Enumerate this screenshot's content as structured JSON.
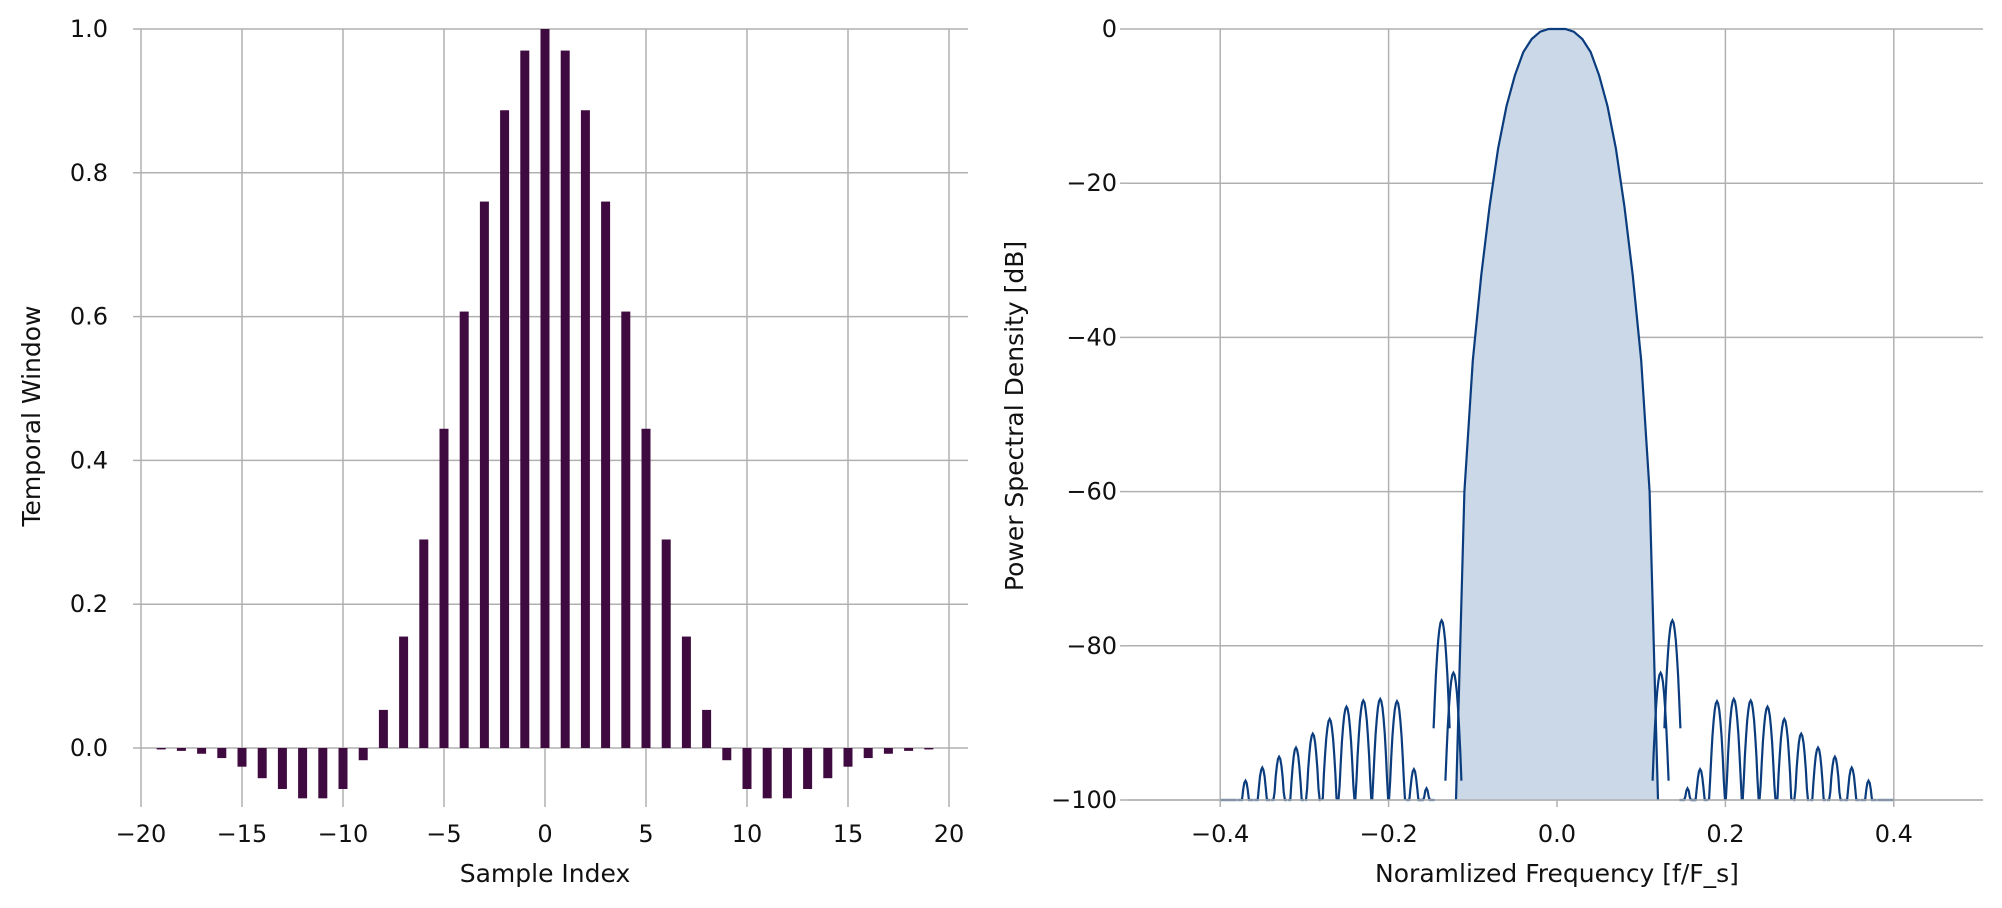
{
  "chart_data": [
    {
      "type": "bar",
      "xlabel": "Sample Index",
      "ylabel": "Temporal Window",
      "xlim": [
        -21,
        20.5
      ],
      "ylim": [
        -0.08,
        1.0
      ],
      "grid": true,
      "bar_color": "#3f0a3f",
      "xticks": [
        -20,
        -15,
        -10,
        -5,
        0,
        5,
        10,
        15,
        20
      ],
      "xtick_labels": [
        "−20",
        "−15",
        "−10",
        "−5",
        "0",
        "5",
        "10",
        "15",
        "20"
      ],
      "yticks": [
        0.0,
        0.2,
        0.4,
        0.6,
        0.8,
        1.0
      ],
      "ytick_labels": [
        "0.0",
        "0.2",
        "0.4",
        "0.6",
        "0.8",
        "1.0"
      ],
      "x": [
        -19,
        -18,
        -17,
        -16,
        -15,
        -14,
        -13,
        -12,
        -11,
        -10,
        -9,
        -8,
        -7,
        -6,
        -5,
        -4,
        -3,
        -2,
        -1,
        0,
        1,
        2,
        3,
        4,
        5,
        6,
        7,
        8,
        9,
        10,
        11,
        12,
        13,
        14,
        15,
        16,
        17,
        18,
        19
      ],
      "values": [
        -0.002,
        -0.004,
        -0.008,
        -0.014,
        -0.026,
        -0.042,
        -0.057,
        -0.07,
        -0.07,
        -0.057,
        -0.017,
        0.053,
        0.155,
        0.29,
        0.444,
        0.607,
        0.76,
        0.887,
        0.97,
        1.0,
        0.97,
        0.887,
        0.76,
        0.607,
        0.444,
        0.29,
        0.155,
        0.053,
        -0.017,
        -0.057,
        -0.07,
        -0.07,
        -0.057,
        -0.042,
        -0.026,
        -0.014,
        -0.008,
        -0.004,
        -0.002
      ]
    },
    {
      "type": "area",
      "xlabel": "Noramlized Frequency [f/F_s]",
      "ylabel": "Power Spectral Density [dB]",
      "xlim": [
        -0.5,
        0.5
      ],
      "ylim": [
        -100,
        0
      ],
      "grid": true,
      "line_color": "#0b3d7e",
      "fill_color": "#cbd8e7",
      "xticks": [
        -0.4,
        -0.2,
        0.0,
        0.2,
        0.4
      ],
      "xtick_labels": [
        "−0.4",
        "−0.2",
        "0.0",
        "0.2",
        "0.4"
      ],
      "yticks": [
        0,
        -20,
        -40,
        -60,
        -80,
        -100
      ],
      "ytick_labels": [
        "0",
        "−20",
        "−40",
        "−60",
        "−80",
        "−100"
      ],
      "mainlobe": {
        "x": [
          -0.12,
          -0.115,
          -0.11,
          -0.1,
          -0.09,
          -0.08,
          -0.07,
          -0.06,
          -0.05,
          -0.04,
          -0.03,
          -0.02,
          -0.01,
          0.0,
          0.01,
          0.02,
          0.03,
          0.04,
          0.05,
          0.06,
          0.07,
          0.08,
          0.09,
          0.1,
          0.11,
          0.115,
          0.12
        ],
        "y": [
          -100,
          -80,
          -60,
          -43,
          -32,
          -23,
          -15.5,
          -10,
          -6,
          -3,
          -1.3,
          -0.35,
          0,
          0,
          0,
          -0.35,
          -1.3,
          -3,
          -6,
          -10,
          -15.5,
          -23,
          -32,
          -43,
          -60,
          -80,
          -100
        ]
      },
      "sidelobes": {
        "centers": [
          -0.39,
          -0.37,
          -0.35,
          -0.33,
          -0.31,
          -0.29,
          -0.27,
          -0.25,
          -0.23,
          -0.21,
          -0.19,
          -0.17,
          -0.155,
          -0.137,
          -0.123,
          0.123,
          0.137,
          0.155,
          0.17,
          0.19,
          0.21,
          0.23,
          0.25,
          0.27,
          0.29,
          0.31,
          0.33,
          0.35,
          0.37,
          0.39
        ],
        "peaks": [
          -100,
          -97.5,
          -95.8,
          -94.4,
          -93.2,
          -91.4,
          -89.5,
          -87.9,
          -87.1,
          -86.9,
          -87.2,
          -96,
          -98.5,
          -76.7,
          -83.5,
          -83.5,
          -76.7,
          -98.5,
          -96,
          -87.2,
          -86.9,
          -87.1,
          -87.9,
          -89.5,
          -91.4,
          -93.2,
          -94.4,
          -95.8,
          -97.5,
          -100
        ],
        "half_width": 0.0095
      }
    }
  ]
}
